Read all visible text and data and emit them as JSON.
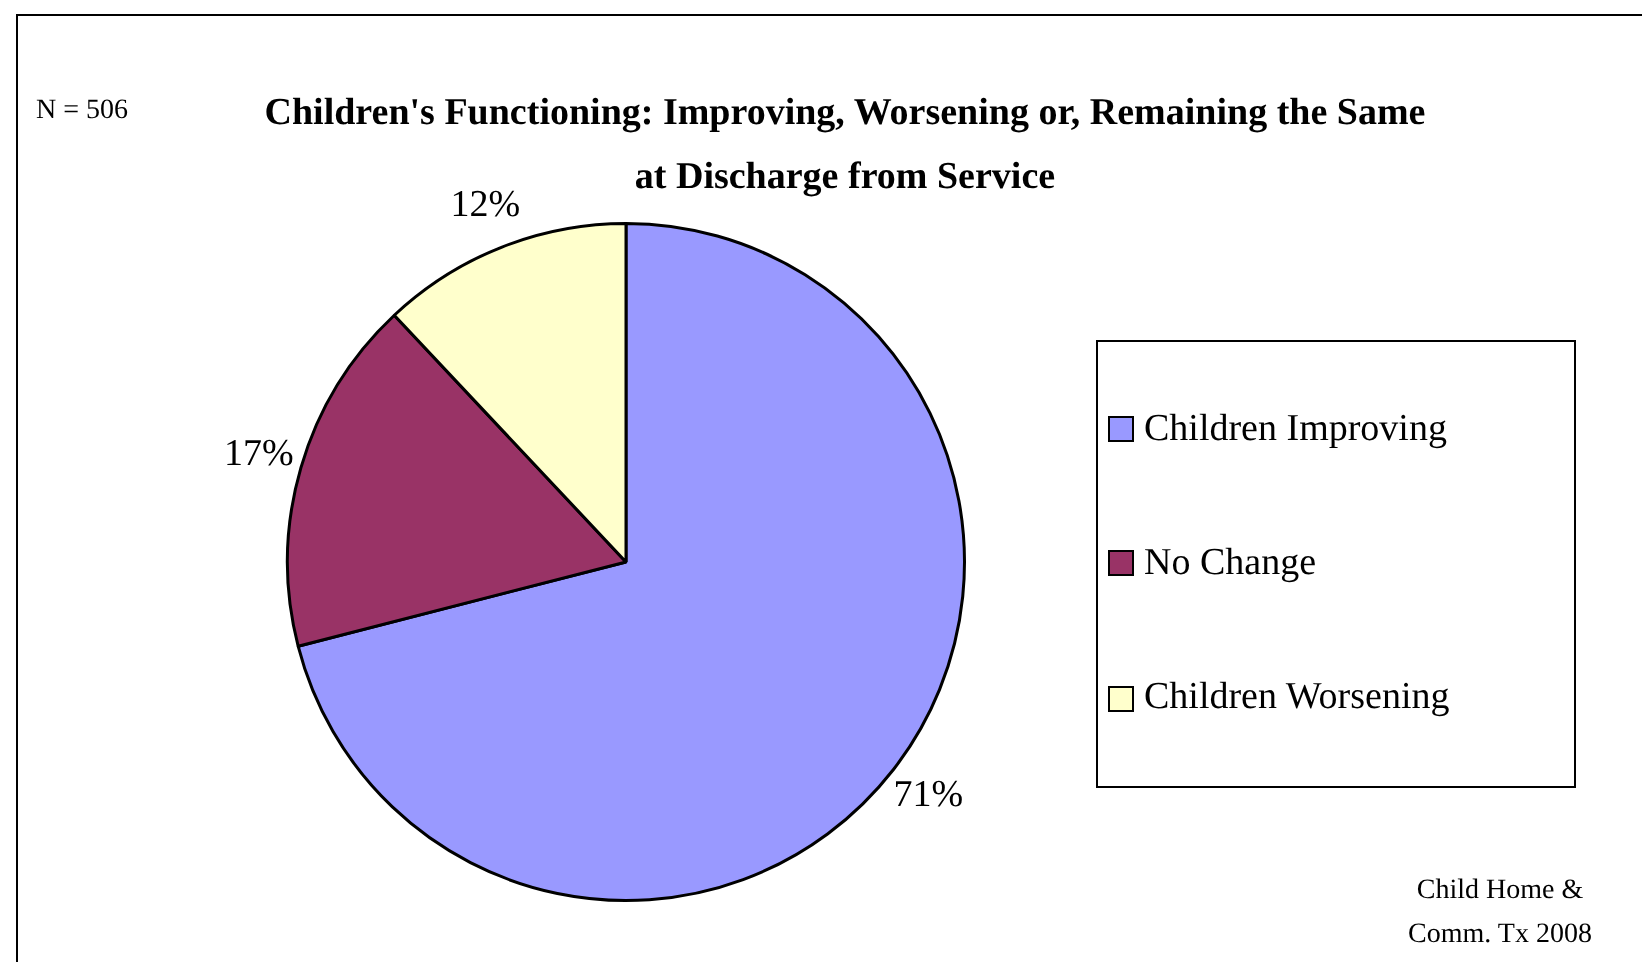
{
  "chart_data": {
    "type": "pie",
    "title": "Children's Functioning: Improving, Worsening or, Remaining the Same at Discharge from Service",
    "categories": [
      "Children Improving",
      "No Change",
      "Children Worsening"
    ],
    "values": [
      71,
      17,
      12
    ],
    "colors": [
      "#9999ff",
      "#993366",
      "#ffffcc"
    ],
    "value_labels": [
      "71%",
      "17%",
      "12%"
    ],
    "legend": "right",
    "annotations": [
      "N = 506",
      "Child Home & Comm. Tx 2008"
    ]
  }
}
